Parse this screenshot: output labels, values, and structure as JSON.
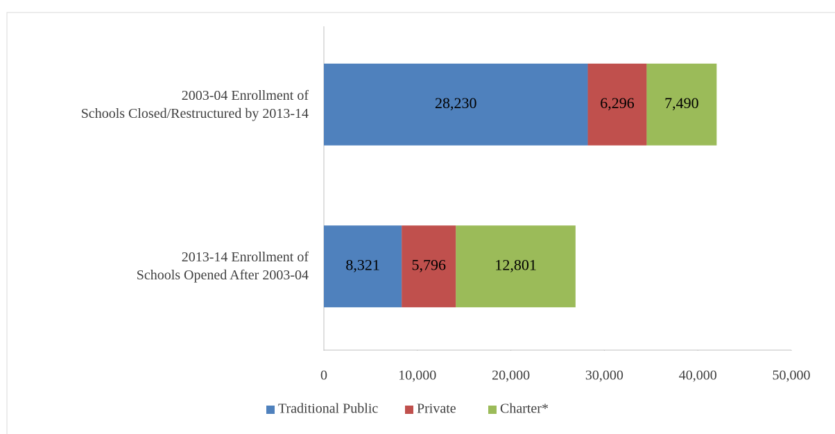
{
  "chart_data": {
    "type": "bar",
    "orientation": "horizontal",
    "stacked": true,
    "categories": [
      "2003-04 Enrollment of\nSchools Closed/Restructured by 2013-14",
      "2013-14 Enrollment of\nSchools Opened After 2003-04"
    ],
    "series": [
      {
        "name": "Traditional Public",
        "color": "#4f81bd",
        "values": [
          28230,
          8321
        ],
        "value_labels": [
          "28,230",
          "8,321"
        ]
      },
      {
        "name": "Private",
        "color": "#c0504d",
        "values": [
          6296,
          5796
        ],
        "value_labels": [
          "6,296",
          "5,796"
        ]
      },
      {
        "name": "Charter*",
        "color": "#9bbb59",
        "values": [
          7490,
          12801
        ],
        "value_labels": [
          "7,490",
          "12,801"
        ]
      }
    ],
    "xlim": [
      0,
      50000
    ],
    "xticks": [
      0,
      {
        "value": 10000,
        "label": "10,000"
      },
      {
        "value": 20000,
        "label": "20,000"
      },
      {
        "value": 30000,
        "label": "30,000"
      },
      {
        "value": 40000,
        "label": "40,000"
      },
      {
        "value": 50000,
        "label": "50,000"
      }
    ],
    "legend": "bottom"
  }
}
